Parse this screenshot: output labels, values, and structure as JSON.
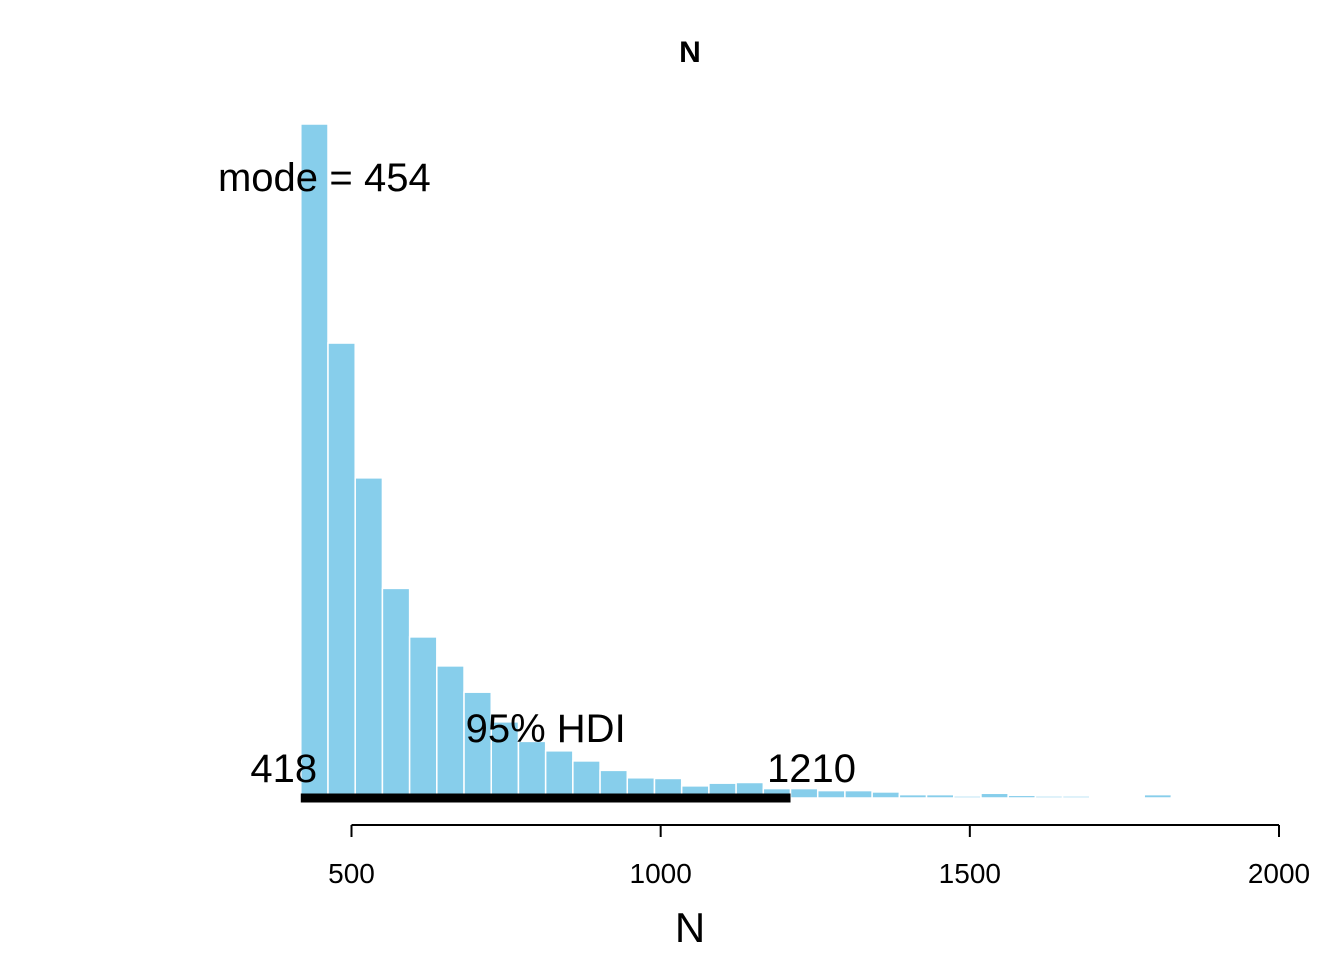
{
  "chart_data": {
    "type": "bar",
    "title": "N",
    "xlabel": "N",
    "ylabel": "",
    "xlim": [
      418,
      2000
    ],
    "x_ticks": [
      "500",
      "1000",
      "1500",
      "2000"
    ],
    "x_tick_values": [
      500,
      1000,
      1500,
      2000
    ],
    "bar_color": "#87ceeb",
    "bar_edge_color": "#ffffff",
    "bin_width": 44,
    "bin_start": 418,
    "counts": [
      1000,
      675,
      475,
      311,
      239,
      196,
      157,
      113,
      84,
      70,
      55,
      41,
      30,
      29,
      18,
      22,
      23,
      14,
      14,
      11,
      11,
      9,
      5,
      5,
      3,
      7,
      4,
      3,
      3,
      2,
      1,
      5,
      1,
      1,
      1,
      1
    ],
    "ylim": [
      0,
      1000
    ],
    "mode_label": "mode",
    "mode_equals": "=",
    "mode_value": "454",
    "hdi_label": "95% HDI",
    "hdi_low": 418,
    "hdi_high": 1210,
    "hdi_low_label": "418",
    "hdi_high_label": "1210",
    "grid": false,
    "legend": "none"
  }
}
